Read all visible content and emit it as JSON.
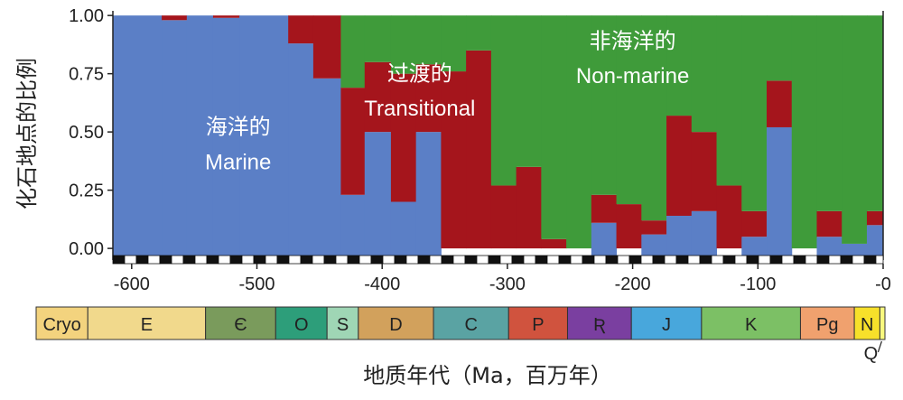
{
  "chart_data": {
    "type": "area",
    "stacked": true,
    "normalized": true,
    "xlabel": "地质年代（Ma，百万年）",
    "ylabel": "化石地点的比例",
    "xlim": [
      -615,
      0
    ],
    "ylim": [
      -0.05,
      1.02
    ],
    "x_ticks": [
      -600,
      -500,
      -400,
      -300,
      -200,
      -100,
      0
    ],
    "x_tick_labels": [
      "-600",
      "-500",
      "-400",
      "-300",
      "-200",
      "-100",
      "-0"
    ],
    "y_ticks": [
      0.0,
      0.25,
      0.5,
      0.75,
      1.0
    ],
    "y_tick_labels": [
      "0.00",
      "0.25",
      "0.50",
      "0.75",
      "1.00"
    ],
    "series": [
      {
        "name": "海洋的 Marine",
        "color": "#5b7fc6"
      },
      {
        "name": "过渡的 Transitional",
        "color": "#a5151c"
      },
      {
        "name": "非海洋的 Non-marine",
        "color": "#3f9b3a"
      }
    ],
    "bins": [
      {
        "x0": -615,
        "x1": -576,
        "marine": 1.0,
        "transitional": 0.0,
        "nonmarine": 0.0
      },
      {
        "x0": -576,
        "x1": -556,
        "marine": 0.98,
        "transitional": 0.02,
        "nonmarine": 0.0
      },
      {
        "x0": -556,
        "x1": -535,
        "marine": 1.0,
        "transitional": 0.0,
        "nonmarine": 0.0
      },
      {
        "x0": -535,
        "x1": -514,
        "marine": 0.99,
        "transitional": 0.01,
        "nonmarine": 0.0
      },
      {
        "x0": -514,
        "x1": -475,
        "marine": 1.0,
        "transitional": 0.0,
        "nonmarine": 0.0
      },
      {
        "x0": -475,
        "x1": -455,
        "marine": 0.88,
        "transitional": 0.12,
        "nonmarine": 0.0
      },
      {
        "x0": -455,
        "x1": -433,
        "marine": 0.73,
        "transitional": 0.27,
        "nonmarine": 0.0
      },
      {
        "x0": -433,
        "x1": -414,
        "marine": 0.23,
        "transitional": 0.46,
        "nonmarine": 0.31
      },
      {
        "x0": -414,
        "x1": -393,
        "marine": 0.5,
        "transitional": 0.3,
        "nonmarine": 0.2
      },
      {
        "x0": -393,
        "x1": -373,
        "marine": 0.2,
        "transitional": 0.55,
        "nonmarine": 0.25
      },
      {
        "x0": -373,
        "x1": -353,
        "marine": 0.5,
        "transitional": 0.29,
        "nonmarine": 0.21
      },
      {
        "x0": -353,
        "x1": -333,
        "marine": 0.0,
        "transitional": 0.76,
        "nonmarine": 0.24
      },
      {
        "x0": -333,
        "x1": -313,
        "marine": 0.0,
        "transitional": 0.85,
        "nonmarine": 0.15
      },
      {
        "x0": -313,
        "x1": -293,
        "marine": 0.0,
        "transitional": 0.27,
        "nonmarine": 0.73
      },
      {
        "x0": -293,
        "x1": -273,
        "marine": 0.0,
        "transitional": 0.35,
        "nonmarine": 0.65
      },
      {
        "x0": -273,
        "x1": -253,
        "marine": 0.0,
        "transitional": 0.04,
        "nonmarine": 0.96
      },
      {
        "x0": -253,
        "x1": -233,
        "marine": 0.0,
        "transitional": 0.0,
        "nonmarine": 1.0
      },
      {
        "x0": -233,
        "x1": -213,
        "marine": 0.11,
        "transitional": 0.12,
        "nonmarine": 0.77
      },
      {
        "x0": -213,
        "x1": -193,
        "marine": 0.0,
        "transitional": 0.19,
        "nonmarine": 0.81
      },
      {
        "x0": -193,
        "x1": -173,
        "marine": 0.06,
        "transitional": 0.06,
        "nonmarine": 0.88
      },
      {
        "x0": -173,
        "x1": -153,
        "marine": 0.14,
        "transitional": 0.43,
        "nonmarine": 0.43
      },
      {
        "x0": -153,
        "x1": -133,
        "marine": 0.16,
        "transitional": 0.34,
        "nonmarine": 0.5
      },
      {
        "x0": -133,
        "x1": -113,
        "marine": 0.0,
        "transitional": 0.27,
        "nonmarine": 0.73
      },
      {
        "x0": -113,
        "x1": -93,
        "marine": 0.05,
        "transitional": 0.11,
        "nonmarine": 0.84
      },
      {
        "x0": -93,
        "x1": -73,
        "marine": 0.52,
        "transitional": 0.2,
        "nonmarine": 0.28
      },
      {
        "x0": -73,
        "x1": -53,
        "marine": 0.0,
        "transitional": 0.0,
        "nonmarine": 1.0
      },
      {
        "x0": -53,
        "x1": -33,
        "marine": 0.05,
        "transitional": 0.11,
        "nonmarine": 0.84
      },
      {
        "x0": -33,
        "x1": -13,
        "marine": 0.02,
        "transitional": 0.0,
        "nonmarine": 0.98
      },
      {
        "x0": -13,
        "x1": 0,
        "marine": 0.1,
        "transitional": 0.06,
        "nonmarine": 0.84
      }
    ],
    "region_labels": [
      {
        "zh": "海洋的",
        "en": "Marine",
        "x": -515,
        "y_zh": 0.49,
        "y_en": 0.34
      },
      {
        "zh": "过渡的",
        "en": "Transitional",
        "x": -370,
        "y_zh": 0.72,
        "y_en": 0.57
      },
      {
        "zh": "非海洋的",
        "en": "Non-marine",
        "x": -200,
        "y_zh": 0.86,
        "y_en": 0.71
      }
    ],
    "periods": [
      {
        "label": "Cryo",
        "start": -720,
        "end": -635,
        "color": "#f3d37e"
      },
      {
        "label": "E",
        "start": -635,
        "end": -541,
        "color": "#f1d98c"
      },
      {
        "label": "Є",
        "start": -541,
        "end": -485,
        "color": "#7a9b5c"
      },
      {
        "label": "O",
        "start": -485,
        "end": -444,
        "color": "#2d9e7a"
      },
      {
        "label": "S",
        "start": -444,
        "end": -419,
        "color": "#9fd6b5"
      },
      {
        "label": "D",
        "start": -419,
        "end": -359,
        "color": "#d2a15c"
      },
      {
        "label": "C",
        "start": -359,
        "end": -299,
        "color": "#5aa3a3"
      },
      {
        "label": "P",
        "start": -299,
        "end": -252,
        "color": "#d0533e"
      },
      {
        "label": "Ʀ",
        "start": -252,
        "end": -201,
        "color": "#7a3fa0"
      },
      {
        "label": "J",
        "start": -201,
        "end": -145,
        "color": "#48a7dc"
      },
      {
        "label": "K",
        "start": -145,
        "end": -66,
        "color": "#7cc065"
      },
      {
        "label": "Pg",
        "start": -66,
        "end": -23,
        "color": "#f0a16e"
      },
      {
        "label": "N",
        "start": -23,
        "end": -2.6,
        "color": "#f7e02a"
      }
    ],
    "quaternary_label": "Q"
  }
}
